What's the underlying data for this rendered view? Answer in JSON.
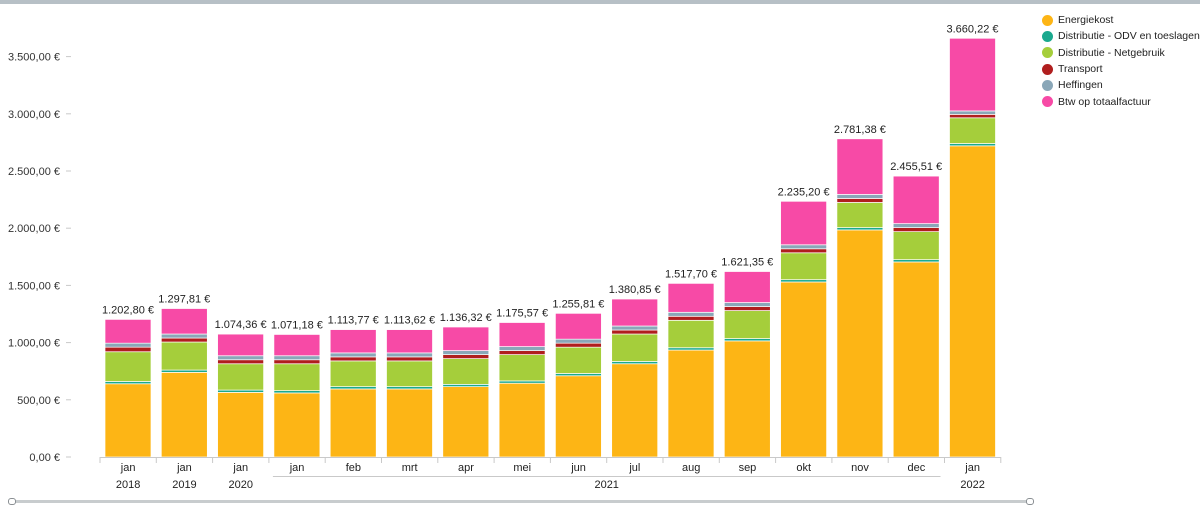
{
  "chart_data": {
    "type": "stacked-bar",
    "title": "",
    "xlabel": "",
    "ylabel": "",
    "ylim": [
      0,
      3900
    ],
    "yticks": [
      0,
      500,
      1000,
      1500,
      2000,
      2500,
      3000,
      3500
    ],
    "ytick_labels": [
      "0,00 €",
      "500,00 €",
      "1.000,00 €",
      "1.500,00 €",
      "2.000,00 €",
      "2.500,00 €",
      "3.000,00 €",
      "3.500,00 €"
    ],
    "categories": [
      "jan",
      "jan",
      "jan",
      "jan",
      "feb",
      "mrt",
      "apr",
      "mei",
      "jun",
      "jul",
      "aug",
      "sep",
      "okt",
      "nov",
      "dec",
      "jan"
    ],
    "year_groups": [
      {
        "label": "2018",
        "start": 0,
        "end": 0
      },
      {
        "label": "2019",
        "start": 1,
        "end": 1
      },
      {
        "label": "2020",
        "start": 2,
        "end": 2
      },
      {
        "label": "2021",
        "start": 3,
        "end": 14
      },
      {
        "label": "2022",
        "start": 15,
        "end": 15
      }
    ],
    "totals": [
      1202.8,
      1297.81,
      1074.36,
      1071.18,
      1113.77,
      1113.62,
      1136.32,
      1175.57,
      1255.81,
      1380.85,
      1517.7,
      1621.35,
      2235.2,
      2781.38,
      2455.51,
      3660.22
    ],
    "total_labels": [
      "1.202,80 €",
      "1.297,81 €",
      "1.074,36 €",
      "1.071,18 €",
      "1.113,77 €",
      "1.113,62 €",
      "1.136,32 €",
      "1.175,57 €",
      "1.255,81 €",
      "1.380,85 €",
      "1.517,70 €",
      "1.621,35 €",
      "2.235,20 €",
      "2.781,38 €",
      "2.455,51 €",
      "3.660,22 €"
    ],
    "legend_position": "top-right",
    "series": [
      {
        "name": "Energiekost",
        "color": "#fdb515",
        "values": [
          640,
          740,
          565,
          560,
          595,
          595,
          615,
          645,
          710,
          815,
          935,
          1015,
          1530,
          1985,
          1705,
          2720
        ]
      },
      {
        "name": "Distributie - ODV en toeslagen",
        "color": "#1aa98e",
        "values": [
          20,
          20,
          20,
          20,
          20,
          20,
          20,
          20,
          20,
          20,
          20,
          20,
          20,
          20,
          20,
          20
        ]
      },
      {
        "name": "Distributie - Netgebruik",
        "color": "#a5ce3b",
        "values": [
          260,
          245,
          230,
          235,
          225,
          225,
          225,
          230,
          230,
          240,
          240,
          245,
          235,
          220,
          245,
          225
        ]
      },
      {
        "name": "Transport",
        "color": "#b01e1e",
        "values": [
          40,
          35,
          35,
          35,
          35,
          35,
          35,
          35,
          35,
          35,
          35,
          35,
          35,
          35,
          35,
          30
        ]
      },
      {
        "name": "Heffingen",
        "color": "#8aa7b8",
        "values": [
          35,
          35,
          35,
          35,
          35,
          35,
          35,
          35,
          35,
          35,
          35,
          35,
          35,
          35,
          35,
          30
        ]
      },
      {
        "name": "Btw op totaalfactuur",
        "color": "#f74aa6",
        "values": [
          207.8,
          222.81,
          189.36,
          186.18,
          203.77,
          203.62,
          206.32,
          210.57,
          225.81,
          235.85,
          252.7,
          271.35,
          380.2,
          486.38,
          415.51,
          635.22
        ]
      }
    ]
  }
}
